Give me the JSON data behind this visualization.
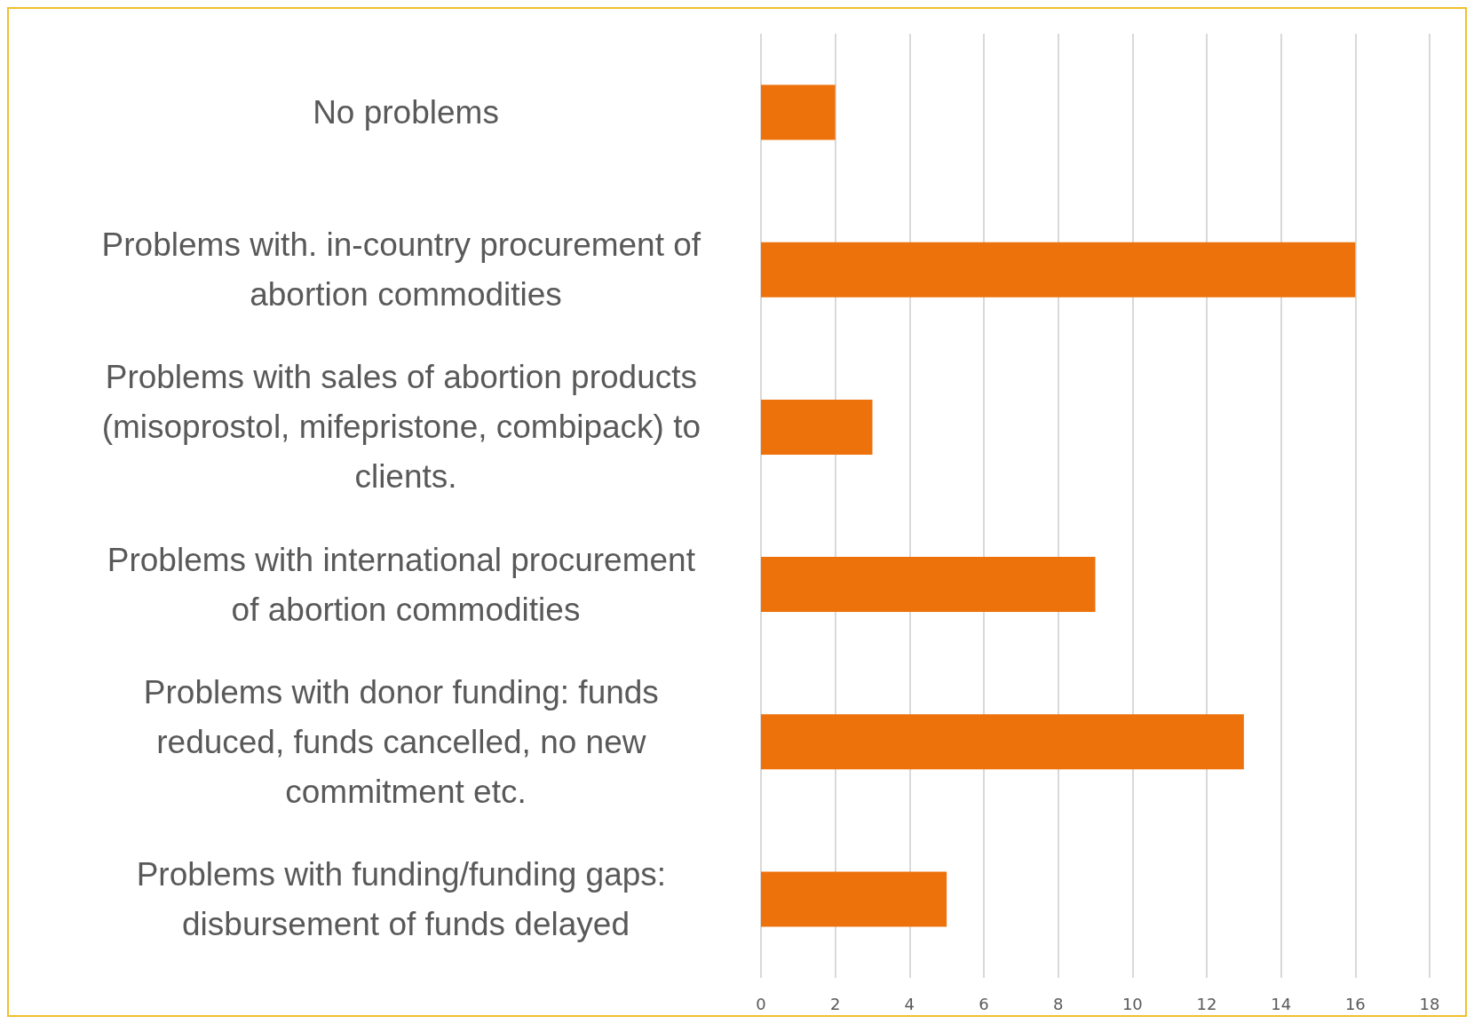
{
  "chart_data": {
    "type": "bar",
    "orientation": "horizontal",
    "categories": [
      "No problems",
      "Problems with. in-country procurement of abortion commodities",
      "Problems with sales of abortion products (misoprostol, mifepristone, combipack) to clients.",
      "Problems with international procurement of abortion commodities",
      "Problems with donor funding: funds reduced, funds cancelled, no new commitment etc.",
      "Problems with funding/funding gaps: disbursement of funds delayed"
    ],
    "values": [
      2,
      16,
      3,
      9,
      13,
      5
    ],
    "color": "#ee720c",
    "xlim": [
      0,
      18
    ],
    "xticks": [
      0,
      2,
      4,
      6,
      8,
      10,
      12,
      14,
      16,
      18
    ],
    "grid": "x"
  }
}
